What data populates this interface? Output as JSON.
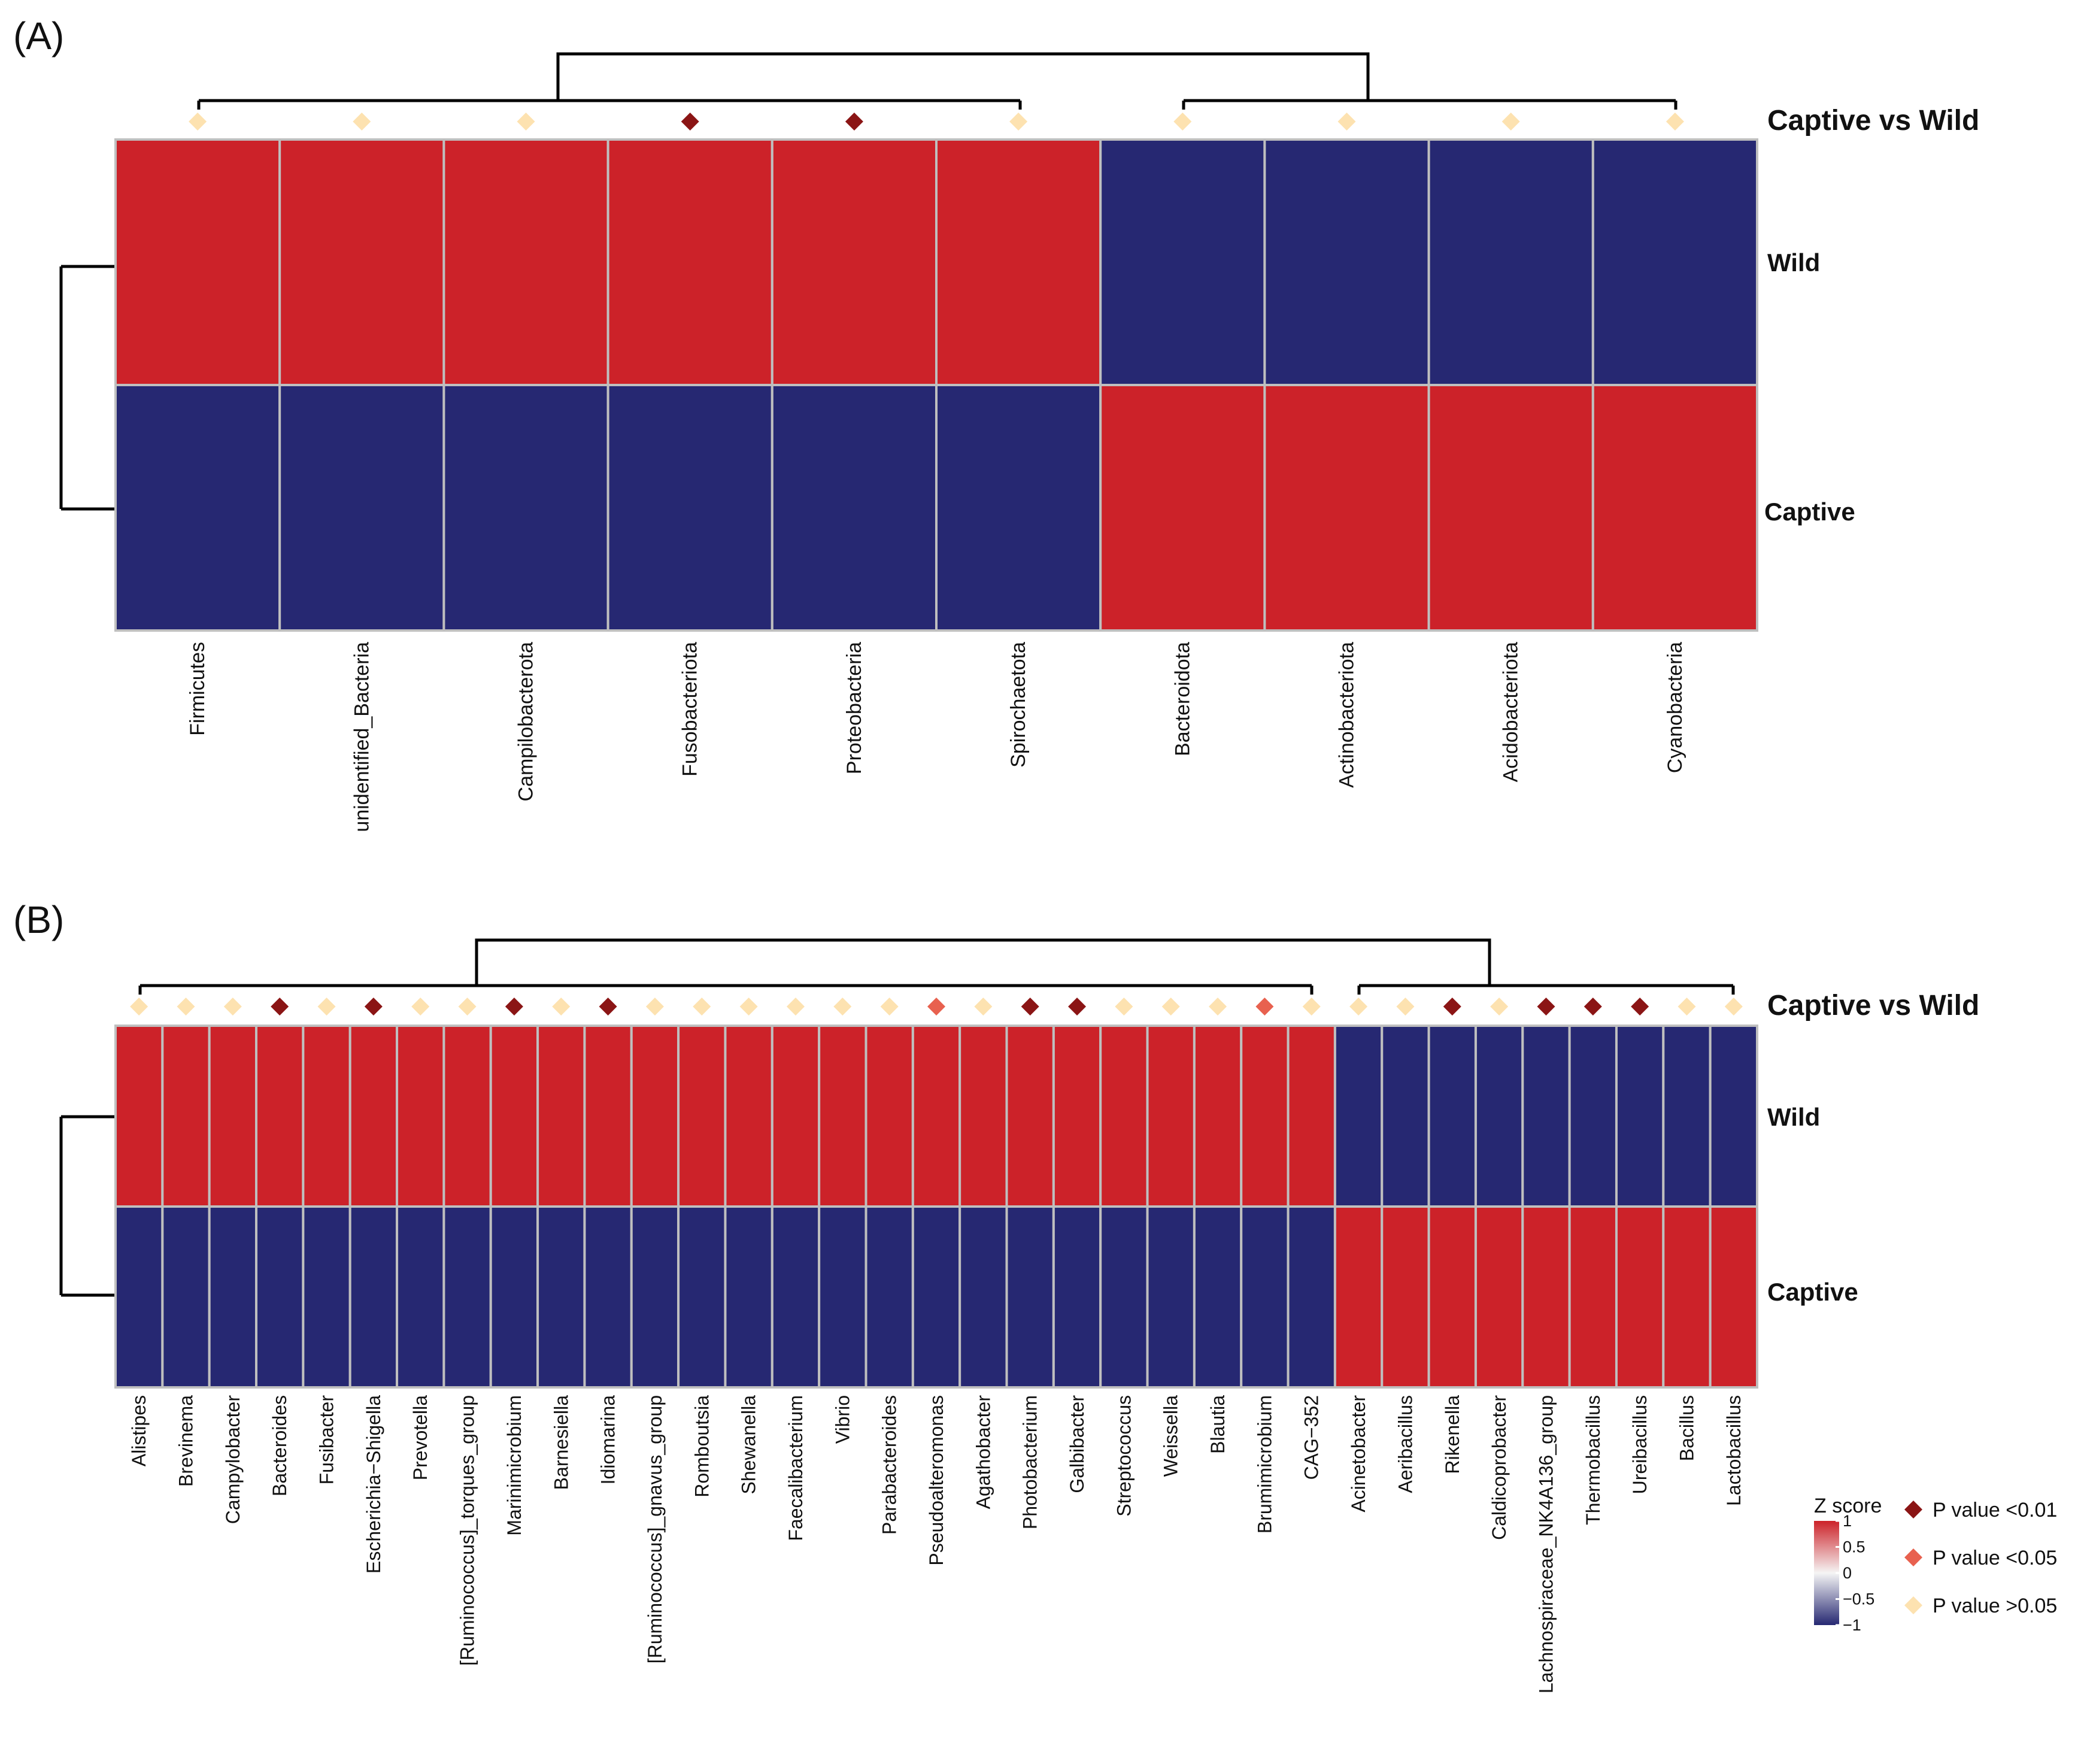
{
  "colors": {
    "high": "#cc2229",
    "low": "#262872",
    "p_lt_001": "#8b1515",
    "p_lt_005": "#e8614f",
    "p_gt_005": "#fde2b0"
  },
  "chart_data": [
    {
      "panel": "(A)",
      "type": "heatmap",
      "annotation_title": "Captive vs Wild",
      "rows": [
        "Wild",
        "Captive"
      ],
      "columns": [
        "Firmicutes",
        "unidentified_Bacteria",
        "Campilobacterota",
        "Fusobacteriota",
        "Proteobacteria",
        "Spirochaetota",
        "Bacteroidota",
        "Actinobacteriota",
        "Acidobacteriota",
        "Cyanobacteria"
      ],
      "z_values": [
        [
          1,
          1,
          1,
          1,
          1,
          1,
          -1,
          -1,
          -1,
          -1
        ],
        [
          -1,
          -1,
          -1,
          -1,
          -1,
          -1,
          1,
          1,
          1,
          1
        ]
      ],
      "p_category": [
        "P value >0.05",
        "P value >0.05",
        "P value >0.05",
        "P value <0.01",
        "P value <0.01",
        "P value >0.05",
        "P value >0.05",
        "P value >0.05",
        "P value >0.05",
        "P value >0.05"
      ],
      "column_clusters": [
        [
          0,
          5
        ],
        [
          6,
          9
        ]
      ],
      "row_dendrogram": true
    },
    {
      "panel": "(B)",
      "type": "heatmap",
      "annotation_title": "Captive vs Wild",
      "rows": [
        "Wild",
        "Captive"
      ],
      "columns": [
        "Alistipes",
        "Brevinema",
        "Campylobacter",
        "Bacteroides",
        "Fusibacter",
        "Escherichia−Shigella",
        "Prevotella",
        "[Ruminococcus]_torques_group",
        "Marinimicrobium",
        "Barnesiella",
        "Idiomarina",
        "[Ruminococcus]_gnavus_group",
        "Romboutsia",
        "Shewanella",
        "Faecalibacterium",
        "Vibrio",
        "Parabacteroides",
        "Pseudoalteromonas",
        "Agathobacter",
        "Photobacterium",
        "Galbibacter",
        "Streptococcus",
        "Weissella",
        "Blautia",
        "Brumimicrobium",
        "CAG−352",
        "Acinetobacter",
        "Aeribacillus",
        "Rikenella",
        "Caldicoprobacter",
        "Lachnospiraceae_NK4A136_group",
        "Thermobacillus",
        "Ureibacillus",
        "Bacillus",
        "Lactobacillus"
      ],
      "z_values": [
        [
          1,
          1,
          1,
          1,
          1,
          1,
          1,
          1,
          1,
          1,
          1,
          1,
          1,
          1,
          1,
          1,
          1,
          1,
          1,
          1,
          1,
          1,
          1,
          1,
          1,
          1,
          -1,
          -1,
          -1,
          -1,
          -1,
          -1,
          -1,
          -1,
          -1
        ],
        [
          -1,
          -1,
          -1,
          -1,
          -1,
          -1,
          -1,
          -1,
          -1,
          -1,
          -1,
          -1,
          -1,
          -1,
          -1,
          -1,
          -1,
          -1,
          -1,
          -1,
          -1,
          -1,
          -1,
          -1,
          -1,
          -1,
          1,
          1,
          1,
          1,
          1,
          1,
          1,
          1,
          1
        ]
      ],
      "p_category": [
        "P value >0.05",
        "P value >0.05",
        "P value >0.05",
        "P value <0.01",
        "P value >0.05",
        "P value <0.01",
        "P value >0.05",
        "P value >0.05",
        "P value <0.01",
        "P value >0.05",
        "P value <0.01",
        "P value >0.05",
        "P value >0.05",
        "P value >0.05",
        "P value >0.05",
        "P value >0.05",
        "P value >0.05",
        "P value <0.05",
        "P value >0.05",
        "P value <0.01",
        "P value <0.01",
        "P value >0.05",
        "P value >0.05",
        "P value >0.05",
        "P value <0.05",
        "P value >0.05",
        "P value >0.05",
        "P value >0.05",
        "P value <0.01",
        "P value >0.05",
        "P value <0.01",
        "P value <0.01",
        "P value <0.01",
        "P value >0.05",
        "P value >0.05"
      ],
      "column_clusters": [
        [
          0,
          25
        ],
        [
          26,
          34
        ]
      ],
      "row_dendrogram": true
    }
  ],
  "legend": {
    "zscore_title": "Z score",
    "zscore_ticks": [
      "1",
      "0.5",
      "0",
      "−0.5",
      "−1"
    ],
    "zscore_tick_values": [
      1,
      0.5,
      0,
      -0.5,
      -1
    ],
    "p_items": [
      "P value <0.01",
      "P value <0.05",
      "P value >0.05"
    ]
  }
}
